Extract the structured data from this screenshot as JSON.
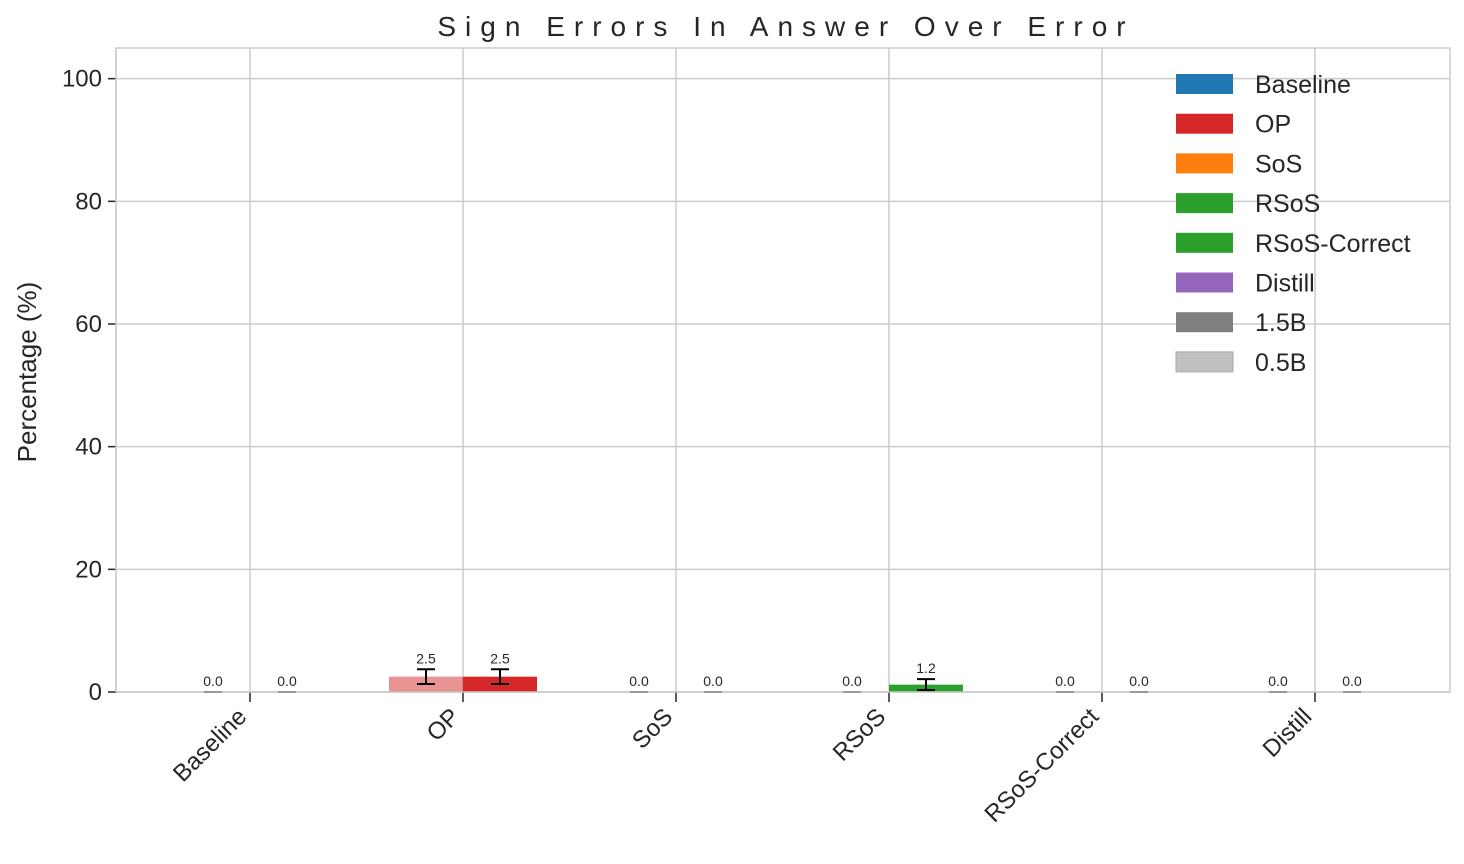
{
  "chart_data": {
    "type": "bar",
    "title": "Sign Errors In Answer Over Error",
    "xlabel": "",
    "ylabel": "Percentage (%)",
    "ylim": [
      0,
      105
    ],
    "yticks": [
      0,
      20,
      40,
      60,
      80,
      100
    ],
    "categories": [
      "Baseline",
      "OP",
      "SoS",
      "RSoS",
      "RSoS-Correct",
      "Distill"
    ],
    "category_colors": [
      "#1f77b4",
      "#d62728",
      "#ff7f0e",
      "#2ca02c",
      "#2ca02c",
      "#9467bd"
    ],
    "series": [
      {
        "name": "0.5B",
        "values": [
          0.0,
          2.5,
          0.0,
          0.0,
          0.0,
          0.0
        ],
        "errors": [
          0.0,
          1.2,
          0.0,
          0.0,
          0.0,
          0.0
        ],
        "labels": [
          "0.0",
          "2.5",
          "0.0",
          "0.0",
          "0.0",
          "0.0"
        ]
      },
      {
        "name": "1.5B",
        "values": [
          0.0,
          2.5,
          0.0,
          1.2,
          0.0,
          0.0
        ],
        "errors": [
          0.0,
          1.2,
          0.0,
          0.9,
          0.0,
          0.0
        ],
        "labels": [
          "0.0",
          "2.5",
          "0.0",
          "1.2",
          "0.0",
          "0.0"
        ]
      }
    ],
    "grid": true,
    "legend": {
      "placement": "top-right",
      "entries": [
        {
          "label": "Baseline",
          "color": "#1f77b4"
        },
        {
          "label": "OP",
          "color": "#d62728"
        },
        {
          "label": "SoS",
          "color": "#ff7f0e"
        },
        {
          "label": "RSoS",
          "color": "#2ca02c"
        },
        {
          "label": "RSoS-Correct",
          "color": "#2ca02c"
        },
        {
          "label": "Distill",
          "color": "#9467bd"
        },
        {
          "label": "1.5B",
          "color": "#808080"
        },
        {
          "label": "0.5B",
          "color": "#c0c0c0"
        }
      ]
    }
  }
}
